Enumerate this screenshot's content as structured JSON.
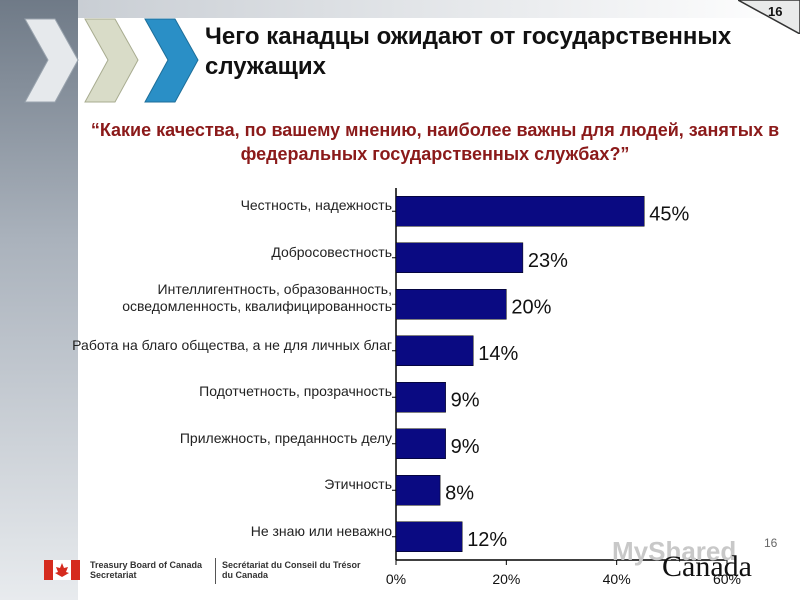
{
  "header": {
    "title": "Чего канадцы ожидают от государственных служащих",
    "subtitle": "“Какие качества, по вашему мнению, наиболее важны для людей, занятых в федеральных государственных службах?”",
    "slide_number": "16"
  },
  "chart_data": {
    "type": "bar",
    "orientation": "horizontal",
    "categories": [
      "Честность, надежность",
      "Добросовестность",
      "Интеллигентность, образованность, осведомленность, квалифицированность",
      "Работа на благо общества, а не для личных благ",
      "Подотчетность, прозрачность",
      "Прилежность, преданность делу",
      "Этичность",
      "Не знаю или неважно"
    ],
    "category_lines": [
      [
        "Честность, надежность"
      ],
      [
        "Добросовестность"
      ],
      [
        "Интеллигентность, образованность,",
        "осведомленность, квалифицированность"
      ],
      [
        "Работа на благо общества, а не для личных благ"
      ],
      [
        "Подотчетность, прозрачность"
      ],
      [
        "Прилежность, преданность делу"
      ],
      [
        "Этичность"
      ],
      [
        "Не знаю или неважно"
      ]
    ],
    "values": [
      45,
      23,
      20,
      14,
      9,
      9,
      8,
      12
    ],
    "value_labels": [
      "45%",
      "23%",
      "20%",
      "14%",
      "9%",
      "9%",
      "8%",
      "12%"
    ],
    "xlim": [
      0,
      60
    ],
    "xticks": [
      "0%",
      "20%",
      "40%",
      "60%"
    ],
    "xtick_values": [
      0,
      20,
      40,
      60
    ],
    "bar_color": "#0a0a82",
    "grid": false
  },
  "footer": {
    "org_en_1": "Treasury Board of Canada",
    "org_en_2": "Secretariat",
    "org_fr_1": "Secrétariat du Conseil du Trésor",
    "org_fr_2": "du Canada",
    "page_number": "16",
    "wordmark": "Canada",
    "watermark": "MyShared"
  },
  "colors": {
    "accent": "#8b1a1a",
    "flag_red": "#d52b1e",
    "arrow_blue": "#1e90c8"
  }
}
